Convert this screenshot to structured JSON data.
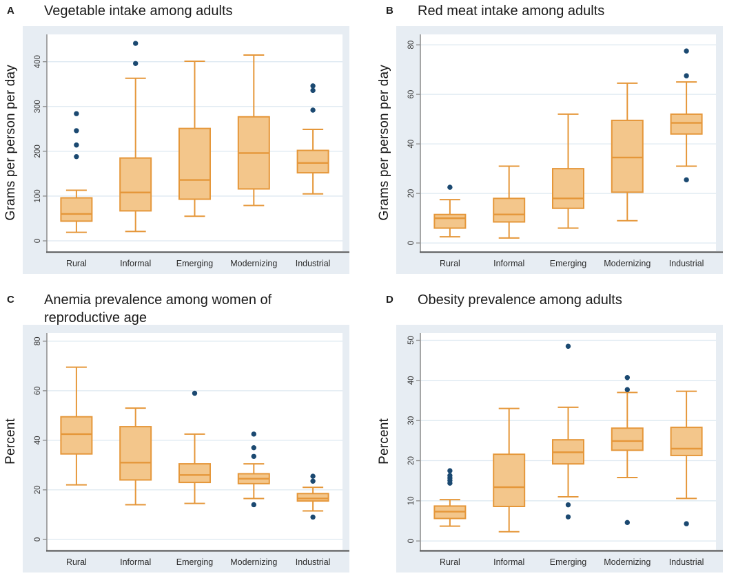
{
  "colors": {
    "panel_bg": "#e7edf3",
    "plot_bg": "#ffffff",
    "gridline": "#dde8f1",
    "axis": "#8a8a8a",
    "bottom_axis": "#5f5f5f",
    "box_fill": "#f3c68b",
    "box_border": "#e5973a",
    "outlier": "#1b4971",
    "tick_label": "#3a3a3a",
    "category_label": "#2b2b2b",
    "title_color": "#1c1c1c"
  },
  "chart_data": [
    {
      "type": "boxplot",
      "panel_label": "A",
      "title": "Vegetable intake among adults",
      "ylabel": "Grams per person per day",
      "xlabel": "",
      "grid": true,
      "yticks": [
        0,
        100,
        200,
        300,
        400
      ],
      "ylim": [
        -23,
        461
      ],
      "categories": [
        "Rural",
        "Informal",
        "Emerging",
        "Modernizing",
        "Industrial"
      ],
      "series": [
        {
          "category": "Rural",
          "whisker_low": 19,
          "q1": 44,
          "median": 60,
          "q3": 96,
          "whisker_high": 113,
          "outliers": [
            188,
            214,
            246,
            284
          ]
        },
        {
          "category": "Informal",
          "whisker_low": 21,
          "q1": 67,
          "median": 108,
          "q3": 185,
          "whisker_high": 363,
          "outliers": [
            396,
            441
          ]
        },
        {
          "category": "Emerging",
          "whisker_low": 55,
          "q1": 93,
          "median": 136,
          "q3": 251,
          "whisker_high": 401,
          "outliers": []
        },
        {
          "category": "Modernizing",
          "whisker_low": 79,
          "q1": 116,
          "median": 196,
          "q3": 277,
          "whisker_high": 415,
          "outliers": []
        },
        {
          "category": "Industrial",
          "whisker_low": 105,
          "q1": 152,
          "median": 174,
          "q3": 202,
          "whisker_high": 249,
          "outliers": [
            292,
            336,
            346
          ]
        }
      ]
    },
    {
      "type": "boxplot",
      "panel_label": "B",
      "title": "Red meat intake among adults",
      "ylabel": "Grams per person per day",
      "xlabel": "",
      "grid": true,
      "yticks": [
        0,
        20,
        40,
        60,
        80
      ],
      "ylim": [
        -3.3,
        84.2
      ],
      "categories": [
        "Rural",
        "Informal",
        "Emerging",
        "Modernizing",
        "Industrial"
      ],
      "series": [
        {
          "category": "Rural",
          "whisker_low": 2.5,
          "q1": 6,
          "median": 10,
          "q3": 11.5,
          "whisker_high": 17.5,
          "outliers": [
            22.5
          ]
        },
        {
          "category": "Informal",
          "whisker_low": 2,
          "q1": 8.5,
          "median": 11.5,
          "q3": 18,
          "whisker_high": 31,
          "outliers": []
        },
        {
          "category": "Emerging",
          "whisker_low": 6,
          "q1": 14,
          "median": 18,
          "q3": 30,
          "whisker_high": 52,
          "outliers": []
        },
        {
          "category": "Modernizing",
          "whisker_low": 9,
          "q1": 20.5,
          "median": 34.5,
          "q3": 49.5,
          "whisker_high": 64.5,
          "outliers": []
        },
        {
          "category": "Industrial",
          "whisker_low": 31,
          "q1": 44,
          "median": 48.5,
          "q3": 52,
          "whisker_high": 65,
          "outliers": [
            25.5,
            67.5,
            77.5
          ]
        }
      ]
    },
    {
      "type": "boxplot",
      "panel_label": "C",
      "title": "Anemia prevalence among women of reproductive age",
      "ylabel": "Percent",
      "xlabel": "",
      "grid": true,
      "yticks": [
        0,
        20,
        40,
        60,
        80
      ],
      "ylim": [
        -4.2,
        83.3
      ],
      "categories": [
        "Rural",
        "Informal",
        "Emerging",
        "Modernizing",
        "Industrial"
      ],
      "series": [
        {
          "category": "Rural",
          "whisker_low": 22,
          "q1": 34.5,
          "median": 42.5,
          "q3": 49.5,
          "whisker_high": 69.5,
          "outliers": []
        },
        {
          "category": "Informal",
          "whisker_low": 14,
          "q1": 24,
          "median": 31,
          "q3": 45.5,
          "whisker_high": 53,
          "outliers": []
        },
        {
          "category": "Emerging",
          "whisker_low": 14.5,
          "q1": 23,
          "median": 26,
          "q3": 30.5,
          "whisker_high": 42.5,
          "outliers": [
            59
          ]
        },
        {
          "category": "Modernizing",
          "whisker_low": 16.5,
          "q1": 22.5,
          "median": 24.5,
          "q3": 26.5,
          "whisker_high": 30.5,
          "outliers": [
            14,
            33.5,
            37,
            42.5
          ]
        },
        {
          "category": "Industrial",
          "whisker_low": 11.5,
          "q1": 15.5,
          "median": 16.5,
          "q3": 18.5,
          "whisker_high": 21,
          "outliers": [
            9,
            23.5,
            25.5
          ]
        }
      ]
    },
    {
      "type": "boxplot",
      "panel_label": "D",
      "title": "Obesity prevalence among adults",
      "ylabel": "Percent",
      "xlabel": "",
      "grid": true,
      "yticks": [
        0,
        10,
        20,
        30,
        40,
        50
      ],
      "ylim": [
        -2.2,
        51.8
      ],
      "categories": [
        "Rural",
        "Informal",
        "Emerging",
        "Modernizing",
        "Industrial"
      ],
      "series": [
        {
          "category": "Rural",
          "whisker_low": 3.7,
          "q1": 5.6,
          "median": 7.3,
          "q3": 8.7,
          "whisker_high": 10.3,
          "outliers": [
            14.4,
            15.1,
            15.7,
            16.3,
            17.5
          ]
        },
        {
          "category": "Informal",
          "whisker_low": 2.3,
          "q1": 8.6,
          "median": 13.4,
          "q3": 21.6,
          "whisker_high": 33,
          "outliers": []
        },
        {
          "category": "Emerging",
          "whisker_low": 11,
          "q1": 19.2,
          "median": 22.1,
          "q3": 25.2,
          "whisker_high": 33.3,
          "outliers": [
            6,
            9,
            48.5
          ]
        },
        {
          "category": "Modernizing",
          "whisker_low": 15.8,
          "q1": 22.6,
          "median": 24.9,
          "q3": 28.1,
          "whisker_high": 37,
          "outliers": [
            4.6,
            37.7,
            40.7
          ]
        },
        {
          "category": "Industrial",
          "whisker_low": 10.6,
          "q1": 21.3,
          "median": 23,
          "q3": 28.3,
          "whisker_high": 37.3,
          "outliers": [
            4.3
          ]
        }
      ]
    }
  ]
}
